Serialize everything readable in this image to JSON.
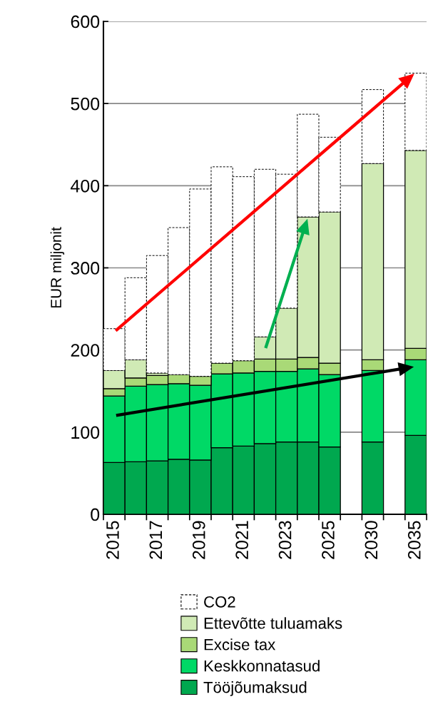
{
  "chart_data": {
    "type": "bar",
    "stacked": true,
    "ylabel": "EUR miljonit",
    "categories": [
      "2015",
      null,
      "2017",
      null,
      "2019",
      null,
      "2021",
      null,
      "2023",
      null,
      "2025",
      null,
      "2030",
      null,
      "2035"
    ],
    "series": [
      {
        "name": "Tööjõumaksud",
        "color": "#00a84f",
        "values": [
          63,
          64,
          65,
          67,
          66,
          81,
          83,
          86,
          88,
          88,
          82,
          null,
          88,
          null,
          96
        ]
      },
      {
        "name": "Keskkonnatasud",
        "color": "#00d966",
        "values": [
          81,
          92,
          93,
          92,
          91,
          90,
          89,
          88,
          86,
          89,
          88,
          null,
          87,
          null,
          92
        ]
      },
      {
        "name": "Excise tax",
        "color": "#a9d977",
        "values": [
          9,
          10,
          11,
          11,
          11,
          13,
          15,
          15,
          15,
          14,
          14,
          null,
          13,
          null,
          14
        ]
      },
      {
        "name": "Ettevõtte tuluamaks",
        "color": "#d0eab5",
        "values": [
          22,
          22,
          3,
          null,
          null,
          null,
          null,
          27,
          62,
          171,
          184,
          null,
          239,
          null,
          241
        ]
      },
      {
        "name": "CO2",
        "color": "#ffffff",
        "line_style": "dashed",
        "values": [
          51,
          100,
          143,
          179,
          228,
          239,
          224,
          204,
          163,
          125,
          91,
          null,
          90,
          null,
          94
        ]
      }
    ],
    "ylim": [
      0,
      600
    ],
    "yticks": [
      0,
      100,
      200,
      300,
      400,
      500,
      600
    ],
    "grid": "y",
    "legend": "bottom"
  }
}
